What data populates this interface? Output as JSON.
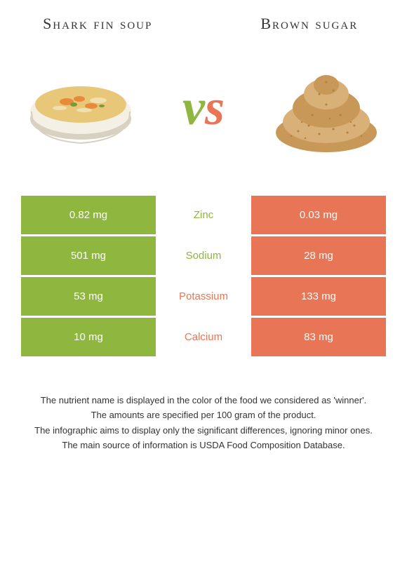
{
  "titles": {
    "left": "Shark fin soup",
    "right": "Brown sugar"
  },
  "title_style": {
    "fontsize": 22,
    "color": "#333333"
  },
  "vs": {
    "text": "vs",
    "fontsize": 72,
    "v_color": "#8fb63f",
    "s_color": "#e87556"
  },
  "table": {
    "left_color": "#8fb63f",
    "right_color": "#e87556",
    "value_fontsize": 15,
    "label_fontsize": 15,
    "rows": [
      {
        "left": "0.82 mg",
        "label": "Zinc",
        "right": "0.03 mg",
        "label_color": "#8fb63f"
      },
      {
        "left": "501 mg",
        "label": "Sodium",
        "right": "28 mg",
        "label_color": "#8fb63f"
      },
      {
        "left": "53 mg",
        "label": "Potassium",
        "right": "133 mg",
        "label_color": "#e87556"
      },
      {
        "left": "10 mg",
        "label": "Calcium",
        "right": "83 mg",
        "label_color": "#e87556"
      }
    ]
  },
  "footnotes": {
    "fontsize": 13,
    "lines": [
      "The nutrient name is displayed in the color of the food we considered as 'winner'.",
      "The amounts are specified per 100 gram of the product.",
      "The infographic aims to display only the significant differences, ignoring minor ones.",
      "The main source of information is USDA Food Composition Database."
    ]
  },
  "images": {
    "soup": {
      "bowl_color": "#f5f0e6",
      "bowl_shadow": "#d8d0c0",
      "broth_color": "#e8c878",
      "carrot_color": "#e88a3a",
      "veg_color": "#7a9a3a",
      "noodle_color": "#f0e0b0"
    },
    "sugar": {
      "main_color": "#c89858",
      "light_color": "#d8b078",
      "dark_color": "#b08040"
    }
  }
}
